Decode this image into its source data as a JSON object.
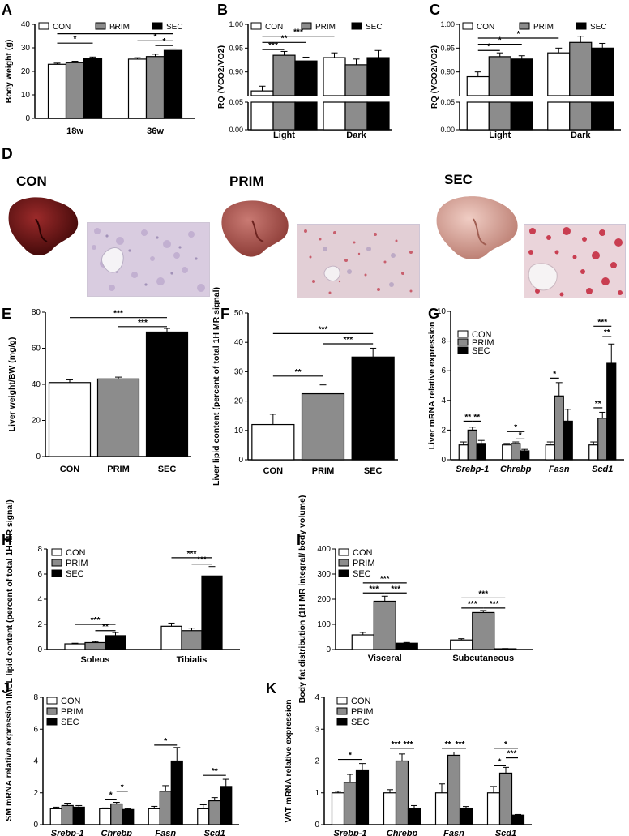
{
  "legend_labels": [
    "CON",
    "PRIM",
    "SEC"
  ],
  "colors": {
    "CON": "#ffffff",
    "PRIM": "#8c8c8c",
    "SEC": "#000000"
  },
  "panel_D": {
    "letter": "D",
    "labels": [
      "CON",
      "PRIM",
      "SEC"
    ]
  },
  "chart_data": [
    {
      "id": "A",
      "letter": "A",
      "type": "bar",
      "ylabel": "Body weight (g)",
      "ylim": [
        0,
        40
      ],
      "yticks": [
        0,
        10,
        20,
        30,
        40
      ],
      "categories": [
        "18w",
        "36w"
      ],
      "series": [
        {
          "name": "CON",
          "values": [
            23.0,
            25.2
          ],
          "errors": [
            0.5,
            0.6
          ]
        },
        {
          "name": "PRIM",
          "values": [
            23.7,
            26.3
          ],
          "errors": [
            0.6,
            1.0
          ]
        },
        {
          "name": "SEC",
          "values": [
            25.5,
            28.9
          ],
          "errors": [
            0.6,
            0.6
          ]
        }
      ],
      "significance": [
        {
          "label": "*",
          "group": 0,
          "from": 0,
          "to": 2,
          "y": 32
        },
        {
          "label": "*",
          "group": 1,
          "from": 0,
          "to": 2,
          "y": 33
        },
        {
          "label": "*",
          "group": 1,
          "from": 1,
          "to": 2,
          "y": 31
        },
        {
          "label": "*",
          "span": [
            0,
            1
          ],
          "from": 0,
          "to": 2,
          "y": 36
        }
      ]
    },
    {
      "id": "B",
      "letter": "B",
      "type": "bar",
      "ylabel": "RQ (VCO2/VO2)",
      "broken_axis": true,
      "ylim_upper": [
        0.85,
        1.0
      ],
      "yticks_upper": [
        "0.90",
        "0.95",
        "1.00"
      ],
      "ylim_lower": [
        0,
        0.05
      ],
      "yticks_lower": [
        "0.00",
        "0.05"
      ],
      "categories": [
        "Light",
        "Dark"
      ],
      "series": [
        {
          "name": "CON",
          "values": [
            0.86,
            0.93
          ],
          "errors": [
            0.01,
            0.01
          ]
        },
        {
          "name": "PRIM",
          "values": [
            0.935,
            0.915
          ],
          "errors": [
            0.008,
            0.012
          ]
        },
        {
          "name": "SEC",
          "values": [
            0.923,
            0.93
          ],
          "errors": [
            0.008,
            0.015
          ]
        }
      ],
      "significance": [
        {
          "label": "***",
          "from": 0,
          "to": 1,
          "y": 0.947
        },
        {
          "label": "**",
          "from": 0,
          "to": 2,
          "y": 0.962
        },
        {
          "label": "***",
          "from": 0,
          "to": 2,
          "y": 0.975,
          "span_group": true
        }
      ]
    },
    {
      "id": "C",
      "letter": "C",
      "type": "bar",
      "ylabel": "RQ (VCO2/VO2)",
      "broken_axis": true,
      "ylim_upper": [
        0.85,
        1.0
      ],
      "yticks_upper": [
        "0.90",
        "0.95",
        "1.00"
      ],
      "ylim_lower": [
        0,
        0.05
      ],
      "yticks_lower": [
        "0.00",
        "0.05"
      ],
      "categories": [
        "Light",
        "Dark"
      ],
      "series": [
        {
          "name": "CON",
          "values": [
            0.89,
            0.94
          ],
          "errors": [
            0.01,
            0.01
          ]
        },
        {
          "name": "PRIM",
          "values": [
            0.932,
            0.962
          ],
          "errors": [
            0.008,
            0.013
          ]
        },
        {
          "name": "SEC",
          "values": [
            0.927,
            0.95
          ],
          "errors": [
            0.007,
            0.01
          ]
        }
      ],
      "significance": [
        {
          "label": "*",
          "from": 0,
          "to": 1,
          "y": 0.945
        },
        {
          "label": "*",
          "from": 0,
          "to": 2,
          "y": 0.958
        },
        {
          "label": "*",
          "from": 0,
          "to": 2,
          "y": 0.971,
          "span_group": true
        }
      ]
    },
    {
      "id": "E",
      "letter": "E",
      "type": "bar",
      "ylabel": "Liver weight/BW (mg/g)",
      "ylim": [
        0,
        80
      ],
      "yticks": [
        0,
        20,
        40,
        60,
        80
      ],
      "categories": [
        "CON",
        "PRIM",
        "SEC"
      ],
      "values": [
        41,
        43,
        69
      ],
      "errors": [
        1.5,
        1.0,
        2.0
      ],
      "significance": [
        {
          "label": "***",
          "from": 0,
          "to": 2,
          "y": 77
        },
        {
          "label": "***",
          "from": 1,
          "to": 2,
          "y": 72
        }
      ]
    },
    {
      "id": "F",
      "letter": "F",
      "type": "bar",
      "ylabel": "Liver lipid content (percent of total 1H MR signal)",
      "ylim": [
        0,
        50
      ],
      "yticks": [
        0,
        10,
        20,
        30,
        40,
        50
      ],
      "categories": [
        "CON",
        "PRIM",
        "SEC"
      ],
      "values": [
        12,
        22.5,
        35
      ],
      "errors": [
        3.5,
        3.0,
        3.0
      ],
      "significance": [
        {
          "label": "**",
          "from": 0,
          "to": 1,
          "y": 28.5
        },
        {
          "label": "***",
          "from": 0,
          "to": 2,
          "y": 43
        },
        {
          "label": "***",
          "from": 1,
          "to": 2,
          "y": 39.5
        }
      ]
    },
    {
      "id": "G",
      "letter": "G",
      "type": "bar",
      "ylabel": "Liver mRNA relative expression",
      "ylim": [
        0,
        10
      ],
      "yticks": [
        0,
        2,
        4,
        6,
        8,
        10
      ],
      "categories": [
        "Srebp-1",
        "Chrebp",
        "Fasn",
        "Scd1"
      ],
      "series": [
        {
          "name": "CON",
          "values": [
            1.0,
            1.0,
            1.0,
            1.0
          ],
          "errors": [
            0.2,
            0.1,
            0.2,
            0.2
          ]
        },
        {
          "name": "PRIM",
          "values": [
            2.0,
            1.1,
            4.3,
            2.8
          ],
          "errors": [
            0.2,
            0.1,
            0.9,
            0.4
          ]
        },
        {
          "name": "SEC",
          "values": [
            1.1,
            0.6,
            2.6,
            6.5
          ],
          "errors": [
            0.2,
            0.1,
            0.8,
            1.3
          ]
        }
      ],
      "significance": [
        {
          "label": "**",
          "group": 0,
          "from": 0,
          "to": 1,
          "y": 2.6
        },
        {
          "label": "**",
          "group": 0,
          "from": 1,
          "to": 2,
          "y": 2.6
        },
        {
          "label": "*",
          "group": 1,
          "from": 0,
          "to": 2,
          "y": 1.9
        },
        {
          "label": "*",
          "group": 1,
          "from": 1,
          "to": 2,
          "y": 1.4
        },
        {
          "label": "*",
          "group": 2,
          "from": 0,
          "to": 1,
          "y": 5.5
        },
        {
          "label": "**",
          "group": 3,
          "from": 0,
          "to": 1,
          "y": 3.5
        },
        {
          "label": "***",
          "group": 3,
          "from": 0,
          "to": 2,
          "y": 9.0
        },
        {
          "label": "**",
          "group": 3,
          "from": 1,
          "to": 2,
          "y": 8.3
        }
      ]
    },
    {
      "id": "H",
      "letter": "H",
      "type": "bar",
      "ylabel": "IMCL lipid content (percent of total 1H MR signal)",
      "ylim": [
        0,
        8
      ],
      "yticks": [
        0,
        2,
        4,
        6,
        8
      ],
      "categories": [
        "Soleus",
        "Tibialis"
      ],
      "series": [
        {
          "name": "CON",
          "values": [
            0.45,
            1.85
          ],
          "errors": [
            0.05,
            0.25
          ]
        },
        {
          "name": "PRIM",
          "values": [
            0.55,
            1.5
          ],
          "errors": [
            0.08,
            0.2
          ]
        },
        {
          "name": "SEC",
          "values": [
            1.1,
            5.85
          ],
          "errors": [
            0.25,
            0.75
          ]
        }
      ],
      "significance": [
        {
          "label": "***",
          "group": 0,
          "from": 0,
          "to": 2,
          "y": 2.0
        },
        {
          "label": "**",
          "group": 0,
          "from": 1,
          "to": 2,
          "y": 1.5
        },
        {
          "label": "***",
          "group": 1,
          "from": 0,
          "to": 2,
          "y": 7.3
        },
        {
          "label": "***",
          "group": 1,
          "from": 1,
          "to": 2,
          "y": 6.8
        }
      ]
    },
    {
      "id": "I",
      "letter": "I",
      "type": "bar",
      "ylabel": "Body fat distribution (1H MR integral/ body volume)",
      "ylim": [
        0,
        400
      ],
      "yticks": [
        0,
        100,
        200,
        300,
        400
      ],
      "categories": [
        "Visceral",
        "Subcutaneous"
      ],
      "series": [
        {
          "name": "CON",
          "values": [
            58,
            38
          ],
          "errors": [
            10,
            5
          ]
        },
        {
          "name": "PRIM",
          "values": [
            192,
            147
          ],
          "errors": [
            20,
            8
          ]
        },
        {
          "name": "SEC",
          "values": [
            25,
            3
          ],
          "errors": [
            3,
            1
          ]
        }
      ],
      "significance": [
        {
          "label": "***",
          "group": 0,
          "from": 0,
          "to": 1,
          "y": 225
        },
        {
          "label": "***",
          "group": 0,
          "from": 0,
          "to": 2,
          "y": 265
        },
        {
          "label": "***",
          "group": 0,
          "from": 1,
          "to": 2,
          "y": 225
        },
        {
          "label": "***",
          "group": 1,
          "from": 0,
          "to": 1,
          "y": 165
        },
        {
          "label": "***",
          "group": 1,
          "from": 0,
          "to": 2,
          "y": 205
        },
        {
          "label": "***",
          "group": 1,
          "from": 1,
          "to": 2,
          "y": 165
        }
      ]
    },
    {
      "id": "J",
      "letter": "J",
      "type": "bar",
      "ylabel": "SM mRNA relative expression",
      "ylim": [
        0,
        8
      ],
      "yticks": [
        0,
        2,
        4,
        6,
        8
      ],
      "categories": [
        "Srebp-1",
        "Chrebp",
        "Fasn",
        "Scd1"
      ],
      "series": [
        {
          "name": "CON",
          "values": [
            1.0,
            1.0,
            1.0,
            1.0
          ],
          "errors": [
            0.1,
            0.05,
            0.15,
            0.25
          ]
        },
        {
          "name": "PRIM",
          "values": [
            1.2,
            1.3,
            2.1,
            1.5
          ],
          "errors": [
            0.15,
            0.1,
            0.35,
            0.2
          ]
        },
        {
          "name": "SEC",
          "values": [
            1.1,
            0.95,
            4.0,
            2.4
          ],
          "errors": [
            0.1,
            0.05,
            0.85,
            0.45
          ]
        }
      ],
      "significance": [
        {
          "label": "*",
          "group": 1,
          "from": 0,
          "to": 1,
          "y": 1.6
        },
        {
          "label": "*",
          "group": 1,
          "from": 1,
          "to": 2,
          "y": 2.1
        },
        {
          "label": "*",
          "group": 2,
          "from": 0,
          "to": 2,
          "y": 5.0
        },
        {
          "label": "**",
          "group": 3,
          "from": 0,
          "to": 2,
          "y": 3.1
        }
      ]
    },
    {
      "id": "K",
      "letter": "K",
      "type": "bar",
      "ylabel": "VAT mRNA relative expression",
      "ylim": [
        0,
        4
      ],
      "yticks": [
        0,
        1,
        2,
        3,
        4
      ],
      "categories": [
        "Srebp-1",
        "Chrebp",
        "Fasn",
        "Scd1"
      ],
      "series": [
        {
          "name": "CON",
          "values": [
            1.0,
            1.0,
            1.0,
            1.0
          ],
          "errors": [
            0.05,
            0.1,
            0.28,
            0.2
          ]
        },
        {
          "name": "PRIM",
          "values": [
            1.33,
            2.0,
            2.18,
            1.62
          ],
          "errors": [
            0.25,
            0.22,
            0.1,
            0.18
          ]
        },
        {
          "name": "SEC",
          "values": [
            1.72,
            0.52,
            0.52,
            0.3
          ],
          "errors": [
            0.2,
            0.08,
            0.05,
            0.02
          ]
        }
      ],
      "significance": [
        {
          "label": "*",
          "group": 0,
          "from": 0,
          "to": 2,
          "y": 2.05
        },
        {
          "label": "***",
          "group": 1,
          "from": 0,
          "to": 1,
          "y": 2.4
        },
        {
          "label": "***",
          "group": 1,
          "from": 1,
          "to": 2,
          "y": 2.4
        },
        {
          "label": "**",
          "group": 2,
          "from": 0,
          "to": 1,
          "y": 2.4
        },
        {
          "label": "***",
          "group": 2,
          "from": 1,
          "to": 2,
          "y": 2.4
        },
        {
          "label": "*",
          "group": 3,
          "from": 0,
          "to": 1,
          "y": 1.85
        },
        {
          "label": "*",
          "group": 3,
          "from": 0,
          "to": 2,
          "y": 2.4
        },
        {
          "label": "***",
          "group": 3,
          "from": 1,
          "to": 2,
          "y": 2.1
        }
      ]
    }
  ]
}
